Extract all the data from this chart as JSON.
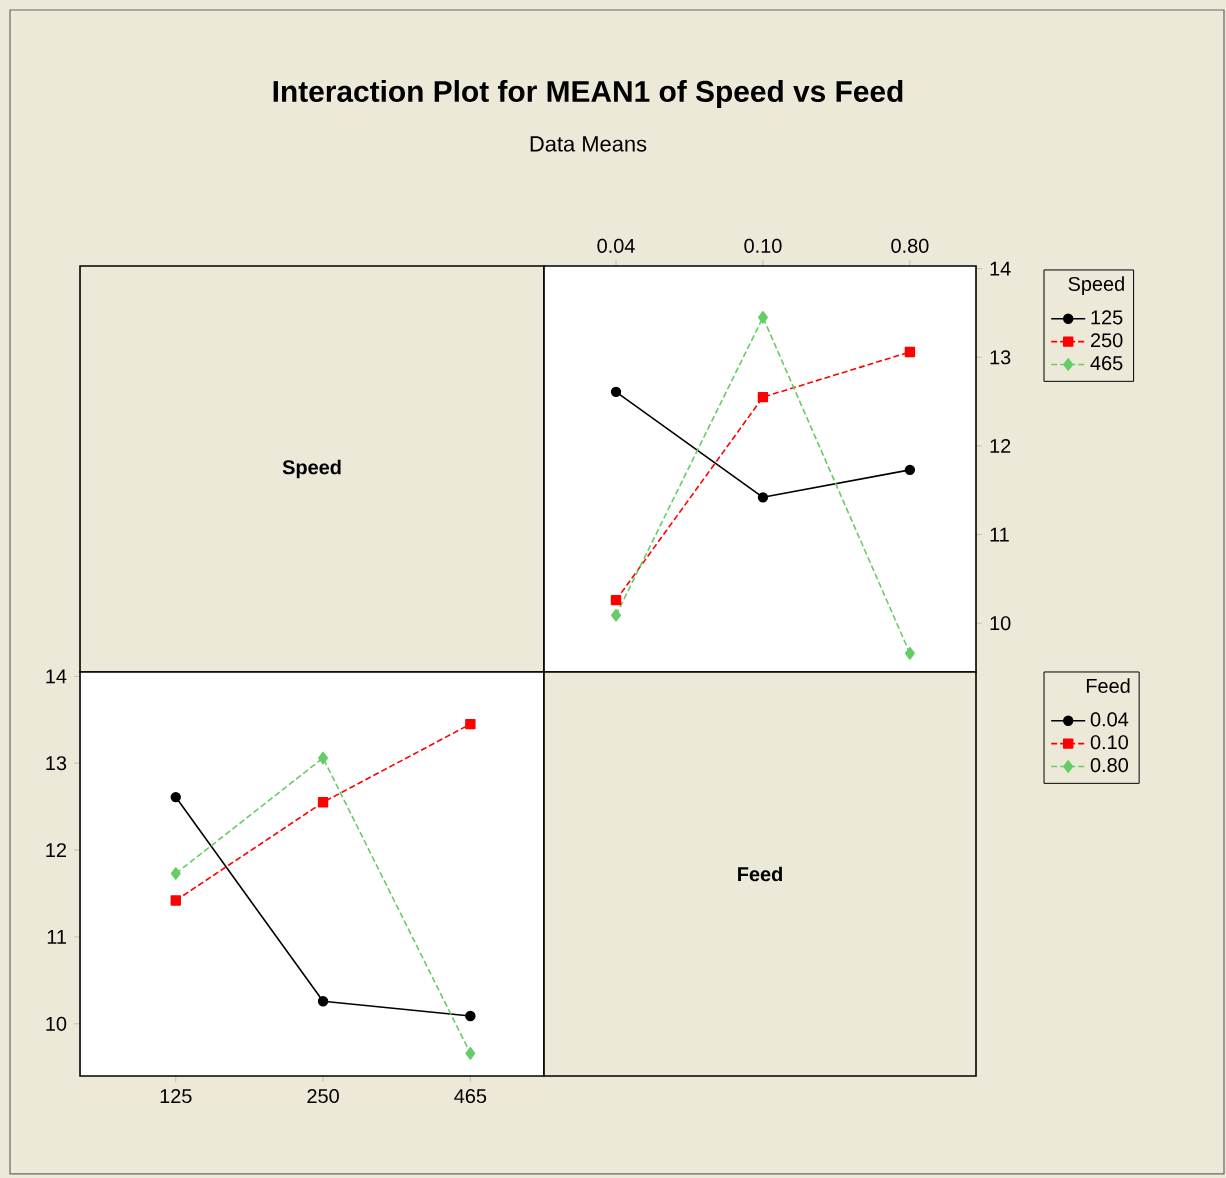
{
  "chart_data": [
    {
      "type": "other",
      "title": "Interaction Plot for MEAN1 of Speed vs Feed",
      "subtitle": "Data Means",
      "annotations": [
        "Speed"
      ]
    },
    {
      "type": "line",
      "categories": [
        "0.04",
        "0.10",
        "0.80"
      ],
      "ylim": [
        9.45,
        14.03
      ],
      "yticks": [
        10,
        11,
        12,
        13,
        14
      ],
      "legend": "right",
      "legend_title": "Speed",
      "grid": false,
      "series": [
        {
          "name": "125",
          "color": "#000000",
          "marker": "circle",
          "line_style": "solid",
          "values": [
            12.61,
            11.42,
            11.73
          ]
        },
        {
          "name": "250",
          "color": "#ff0000",
          "marker": "square",
          "line_style": "dashed",
          "values": [
            10.26,
            12.55,
            13.06
          ]
        },
        {
          "name": "465",
          "color": "#66cc66",
          "marker": "diamond",
          "line_style": "dashed",
          "values": [
            10.09,
            13.45,
            9.66
          ]
        }
      ]
    },
    {
      "type": "line",
      "categories": [
        "125",
        "250",
        "465"
      ],
      "ylim": [
        9.4,
        14.05
      ],
      "yticks": [
        10,
        11,
        12,
        13,
        14
      ],
      "legend": "right",
      "legend_title": "Feed",
      "grid": false,
      "series": [
        {
          "name": "0.04",
          "color": "#000000",
          "marker": "circle",
          "line_style": "solid",
          "values": [
            12.61,
            10.26,
            10.09
          ]
        },
        {
          "name": "0.10",
          "color": "#ff0000",
          "marker": "square",
          "line_style": "dashed",
          "values": [
            11.42,
            12.55,
            13.45
          ]
        },
        {
          "name": "0.80",
          "color": "#66cc66",
          "marker": "diamond",
          "line_style": "dashed",
          "values": [
            11.73,
            13.06,
            9.66
          ]
        }
      ]
    },
    {
      "type": "other",
      "annotations": [
        "Feed"
      ]
    }
  ]
}
